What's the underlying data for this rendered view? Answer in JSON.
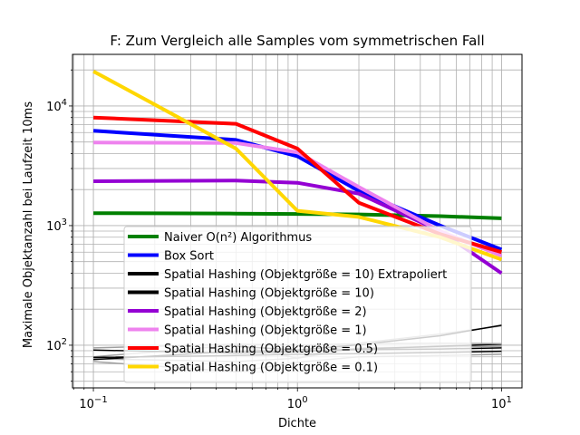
{
  "chart_data": {
    "type": "line",
    "title": "F: Zum Vergleich alle Samples vom symmetrischen Fall",
    "xlabel": "Dichte",
    "ylabel": "Maximale Objektanzahl bei Laufzeit 10ms",
    "xscale": "log",
    "yscale": "log",
    "xlim": [
      0.079,
      12.6
    ],
    "ylim": [
      44,
      27000
    ],
    "grid": true,
    "legend_position": "lower-center",
    "x_ticks": [
      {
        "value": 0.1,
        "base": "10",
        "exp": "−1"
      },
      {
        "value": 1,
        "base": "10",
        "exp": "0"
      },
      {
        "value": 10,
        "base": "10",
        "exp": "1"
      }
    ],
    "y_ticks": [
      {
        "value": 100,
        "base": "10",
        "exp": "2"
      },
      {
        "value": 1000,
        "base": "10",
        "exp": "3"
      },
      {
        "value": 10000,
        "base": "10",
        "exp": "4"
      }
    ],
    "background_lines": [
      {
        "color": "#a0a0a0",
        "width": 1.5,
        "x": [
          0.1,
          0.5,
          1,
          2,
          5,
          10
        ],
        "y": [
          77,
          73,
          78,
          104,
          124,
          145
        ]
      },
      {
        "color": "#a0a0a0",
        "width": 1.5,
        "x": [
          0.1,
          0.5,
          1,
          2,
          5,
          10
        ],
        "y": [
          80,
          100,
          78,
          95,
          97,
          98
        ]
      },
      {
        "color": "#a0a0a0",
        "width": 1.5,
        "x": [
          0.1,
          0.5,
          1,
          2,
          5,
          10
        ],
        "y": [
          73,
          60,
          72,
          80,
          82,
          84
        ]
      },
      {
        "color": "#000000",
        "width": 1.5,
        "x": [
          0.1,
          0.5,
          1,
          2,
          5,
          10
        ],
        "y": [
          91,
          86,
          88,
          93,
          98,
          102
        ]
      },
      {
        "color": "#000000",
        "width": 1.5,
        "x": [
          0.1,
          0.5,
          1,
          2,
          5,
          10
        ],
        "y": [
          76,
          89,
          90,
          92,
          93,
          95
        ]
      },
      {
        "color": "#000000",
        "width": 1.5,
        "x": [
          0.1,
          0.5,
          1,
          2,
          5,
          10
        ],
        "y": [
          79,
          82,
          84,
          85,
          87,
          89
        ]
      },
      {
        "color": "#000000",
        "width": 1.5,
        "x": [
          0.5,
          1,
          2,
          5,
          10
        ],
        "y": [
          98,
          91,
          101,
          120,
          147
        ]
      },
      {
        "color": "#a0a0a0",
        "width": 1.5,
        "x": [
          0.1,
          0.5,
          1,
          2,
          5,
          10
        ],
        "y": [
          95,
          102,
          100,
          103,
          104,
          103
        ]
      }
    ],
    "series": [
      {
        "name": "Naiver O(n²) Algorithmus",
        "color": "#008000",
        "width": 4,
        "x": [
          0.1,
          0.5,
          1,
          2,
          5,
          10
        ],
        "y": [
          1270,
          1260,
          1250,
          1240,
          1200,
          1150
        ]
      },
      {
        "name": "Box Sort",
        "color": "#0000ff",
        "width": 4,
        "x": [
          0.1,
          0.5,
          1,
          2,
          5,
          10
        ],
        "y": [
          6200,
          5200,
          3800,
          1950,
          1000,
          630
        ]
      },
      {
        "name": "Spatial Hashing (Objektgröße = 10) Extrapoliert",
        "color": "#000000",
        "width": 4,
        "x": [],
        "y": []
      },
      {
        "name": "Spatial Hashing (Objektgröße = 10)",
        "color": "#000000",
        "width": 4,
        "x": [],
        "y": []
      },
      {
        "name": "Spatial Hashing (Objektgröße = 2)",
        "color": "#9400d3",
        "width": 4,
        "x": [
          0.1,
          0.5,
          1,
          2,
          5,
          10
        ],
        "y": [
          2350,
          2380,
          2280,
          1850,
          900,
          400
        ]
      },
      {
        "name": "Spatial Hashing (Objektgröße = 1)",
        "color": "#ee82ee",
        "width": 4,
        "x": [
          0.1,
          0.5,
          1,
          2,
          5,
          10
        ],
        "y": [
          4950,
          4900,
          4100,
          2100,
          900,
          560
        ]
      },
      {
        "name": "Spatial Hashing (Objektgröße = 0.5)",
        "color": "#ff0000",
        "width": 4,
        "x": [
          0.1,
          0.5,
          1,
          2,
          5,
          10
        ],
        "y": [
          8000,
          7100,
          4400,
          1550,
          850,
          600
        ]
      },
      {
        "name": "Spatial Hashing (Objektgröße = 0.1)",
        "color": "#ffd700",
        "width": 4,
        "x": [
          0.1,
          0.5,
          1,
          2,
          5,
          10
        ],
        "y": [
          19500,
          4400,
          1330,
          1180,
          800,
          520
        ]
      }
    ]
  }
}
